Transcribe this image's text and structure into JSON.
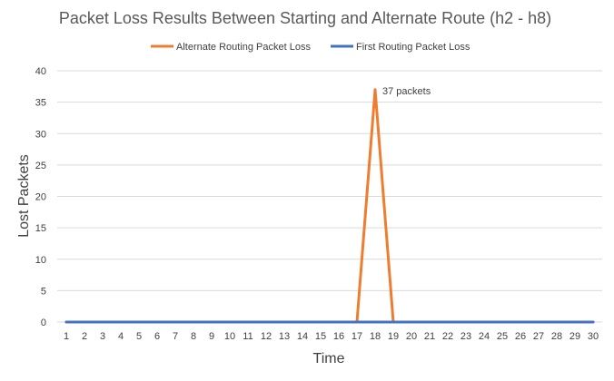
{
  "chart_data": {
    "type": "line",
    "title": "Packet Loss Results Between Starting and Alternate Route (h2 - h8)",
    "xlabel": "Time",
    "ylabel": "Lost Packets",
    "x": [
      1,
      2,
      3,
      4,
      5,
      6,
      7,
      8,
      9,
      10,
      11,
      12,
      13,
      14,
      15,
      16,
      17,
      18,
      19,
      20,
      21,
      22,
      23,
      24,
      25,
      26,
      27,
      28,
      29,
      30
    ],
    "ylim": [
      0,
      40
    ],
    "yticks": [
      0,
      5,
      10,
      15,
      20,
      25,
      30,
      35,
      40
    ],
    "grid": "horizontal",
    "legend_position": "top",
    "series": [
      {
        "name": "Alternate Routing Packet Loss",
        "color": "#ED7D31",
        "values": [
          0,
          0,
          0,
          0,
          0,
          0,
          0,
          0,
          0,
          0,
          0,
          0,
          0,
          0,
          0,
          0,
          0,
          37,
          0,
          0,
          0,
          0,
          0,
          0,
          0,
          0,
          0,
          0,
          0,
          0
        ]
      },
      {
        "name": "First Routing Packet Loss",
        "color": "#4472C4",
        "values": [
          0,
          0,
          0,
          0,
          0,
          0,
          0,
          0,
          0,
          0,
          0,
          0,
          0,
          0,
          0,
          0,
          0,
          0,
          0,
          0,
          0,
          0,
          0,
          0,
          0,
          0,
          0,
          0,
          0,
          0
        ]
      }
    ],
    "annotations": [
      {
        "series": 0,
        "x": 18,
        "text": "37 packets"
      }
    ]
  }
}
